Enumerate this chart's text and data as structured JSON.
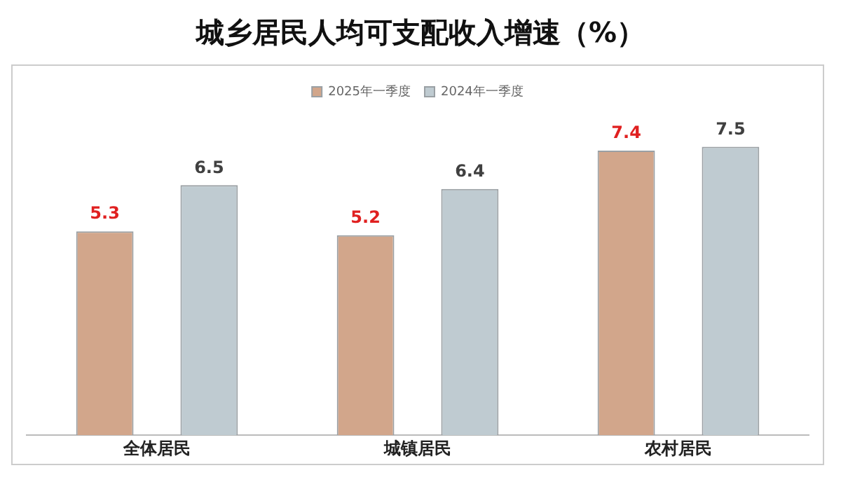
{
  "chart_data": {
    "type": "bar",
    "title": "城乡居民人均可支配收入增速（%）",
    "categories": [
      "全体居民",
      "城镇居民",
      "农村居民"
    ],
    "series": [
      {
        "name": "2025年一季度",
        "color": "#d2a68b",
        "values": [
          5.3,
          5.2,
          7.4
        ]
      },
      {
        "name": "2024年一季度",
        "color": "#bfcbd1",
        "values": [
          6.5,
          6.4,
          7.5
        ]
      }
    ],
    "data_labels": true,
    "legend": "top",
    "grid": false
  }
}
